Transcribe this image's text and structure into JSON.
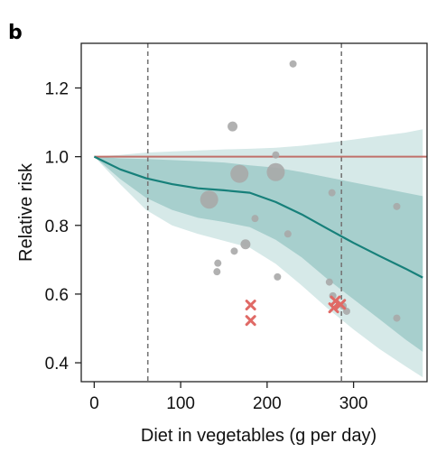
{
  "panel_label": "b",
  "chart_data": {
    "type": "line",
    "xlabel": "Diet in vegetables (g per day)",
    "ylabel": "Relative risk",
    "xlim": [
      -15,
      385
    ],
    "ylim": [
      0.345,
      1.33
    ],
    "xticks": [
      0,
      100,
      200,
      300
    ],
    "yticks": [
      0.4,
      0.6,
      0.8,
      1.0,
      1.2
    ],
    "ytick_labels": [
      "0.4",
      "0.6",
      "0.8",
      "1.0",
      "1.2"
    ],
    "reference_lines": {
      "vertical_x": [
        62,
        286
      ],
      "horizontal_y": 1.0
    },
    "colors": {
      "curve": "#17807a",
      "band_inner": "#a7cfcd",
      "band_outer": "#d6e9e8",
      "reference": "#c0706a",
      "points": "#a9a9a9",
      "outliers": "#e06a66"
    },
    "series": [
      {
        "x": [
          0,
          30,
          60,
          90,
          120,
          150,
          180,
          210,
          240,
          270,
          300,
          330,
          360,
          380
        ],
        "y": [
          1.0,
          0.963,
          0.937,
          0.92,
          0.908,
          0.902,
          0.895,
          0.868,
          0.832,
          0.79,
          0.749,
          0.711,
          0.674,
          0.648
        ]
      }
    ],
    "bands": [
      {
        "x": [
          0,
          30,
          60,
          90,
          120,
          150,
          180,
          210,
          240,
          270,
          300,
          330,
          360,
          380
        ],
        "lower": [
          1.0,
          0.935,
          0.88,
          0.845,
          0.822,
          0.81,
          0.795,
          0.758,
          0.707,
          0.643,
          0.585,
          0.527,
          0.468,
          0.432
        ],
        "upper": [
          1.0,
          0.995,
          0.993,
          0.99,
          0.987,
          0.983,
          0.975,
          0.968,
          0.955,
          0.94,
          0.925,
          0.91,
          0.895,
          0.885
        ]
      },
      {
        "x": [
          0,
          30,
          60,
          90,
          120,
          150,
          180,
          210,
          240,
          270,
          300,
          330,
          360,
          380
        ],
        "lower": [
          1.0,
          0.92,
          0.845,
          0.8,
          0.775,
          0.755,
          0.735,
          0.688,
          0.625,
          0.558,
          0.497,
          0.44,
          0.39,
          0.358
        ],
        "upper": [
          1.0,
          1.005,
          1.012,
          1.015,
          1.018,
          1.021,
          1.023,
          1.026,
          1.032,
          1.04,
          1.05,
          1.06,
          1.07,
          1.08
        ]
      }
    ],
    "points": [
      {
        "x": 133,
        "y": 0.875,
        "size": "large"
      },
      {
        "x": 168,
        "y": 0.95,
        "size": "large"
      },
      {
        "x": 210,
        "y": 0.955,
        "size": "large"
      },
      {
        "x": 160,
        "y": 1.088,
        "size": "medium"
      },
      {
        "x": 175,
        "y": 0.745,
        "size": "medium"
      },
      {
        "x": 210,
        "y": 1.005,
        "size": "small"
      },
      {
        "x": 230,
        "y": 1.27,
        "size": "small"
      },
      {
        "x": 275,
        "y": 0.895,
        "size": "small"
      },
      {
        "x": 350,
        "y": 0.855,
        "size": "small"
      },
      {
        "x": 186,
        "y": 0.82,
        "size": "small"
      },
      {
        "x": 162,
        "y": 0.725,
        "size": "small"
      },
      {
        "x": 143,
        "y": 0.69,
        "size": "small"
      },
      {
        "x": 142,
        "y": 0.665,
        "size": "small"
      },
      {
        "x": 224,
        "y": 0.775,
        "size": "small"
      },
      {
        "x": 212,
        "y": 0.65,
        "size": "small"
      },
      {
        "x": 272,
        "y": 0.635,
        "size": "small"
      },
      {
        "x": 276,
        "y": 0.595,
        "size": "small"
      },
      {
        "x": 288,
        "y": 0.565,
        "size": "small"
      },
      {
        "x": 292,
        "y": 0.55,
        "size": "small"
      },
      {
        "x": 350,
        "y": 0.53,
        "size": "small"
      }
    ],
    "outliers": [
      {
        "x": 181,
        "y": 0.568
      },
      {
        "x": 181,
        "y": 0.523
      },
      {
        "x": 279,
        "y": 0.58
      },
      {
        "x": 285,
        "y": 0.57
      },
      {
        "x": 277,
        "y": 0.56
      }
    ]
  }
}
